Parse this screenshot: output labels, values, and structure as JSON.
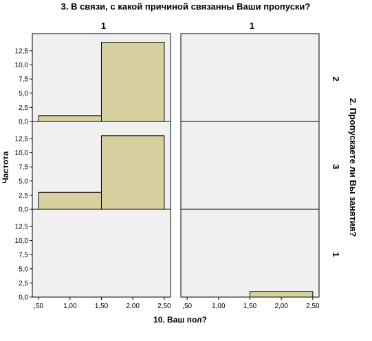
{
  "chart_data": {
    "type": "bar",
    "title": "3. В связи, с какой причиной связанны Ваши пропуски?",
    "xlabel": "10. Ваш пол?",
    "ylabel": "Частота",
    "row_var_label": "2. Пропускаете ли Вы занятия?",
    "columns": [
      "1",
      "1"
    ],
    "rows": [
      "2",
      "3",
      "1"
    ],
    "x_ticks": [
      ",50",
      "1,00",
      "1,50",
      "2,00",
      "2,50"
    ],
    "x_tick_values": [
      0.5,
      1.0,
      1.5,
      2.0,
      2.5
    ],
    "y_ticks": [
      "0,0",
      "2,5",
      "5,0",
      "7,5",
      "10,0",
      "12,5"
    ],
    "y_tick_values": [
      0,
      2.5,
      5,
      7.5,
      10,
      12.5
    ],
    "xlim": [
      0.4,
      2.6
    ],
    "ylim": [
      0,
      14.8
    ],
    "panels": [
      {
        "row": 0,
        "col": 0,
        "bins": [
          {
            "x0": 0.5,
            "x1": 1.5,
            "value": 1
          },
          {
            "x0": 1.5,
            "x1": 2.5,
            "value": 14
          }
        ]
      },
      {
        "row": 0,
        "col": 1,
        "bins": []
      },
      {
        "row": 1,
        "col": 0,
        "bins": [
          {
            "x0": 0.5,
            "x1": 1.5,
            "value": 3
          },
          {
            "x0": 1.5,
            "x1": 2.5,
            "value": 13
          }
        ]
      },
      {
        "row": 1,
        "col": 1,
        "bins": []
      },
      {
        "row": 2,
        "col": 0,
        "bins": []
      },
      {
        "row": 2,
        "col": 1,
        "bins": [
          {
            "x0": 1.5,
            "x1": 2.5,
            "value": 1
          }
        ]
      }
    ],
    "grid": false,
    "colors": {
      "bar_fill": "#d6d19f",
      "panel_bg": "#f0f0f0"
    }
  }
}
